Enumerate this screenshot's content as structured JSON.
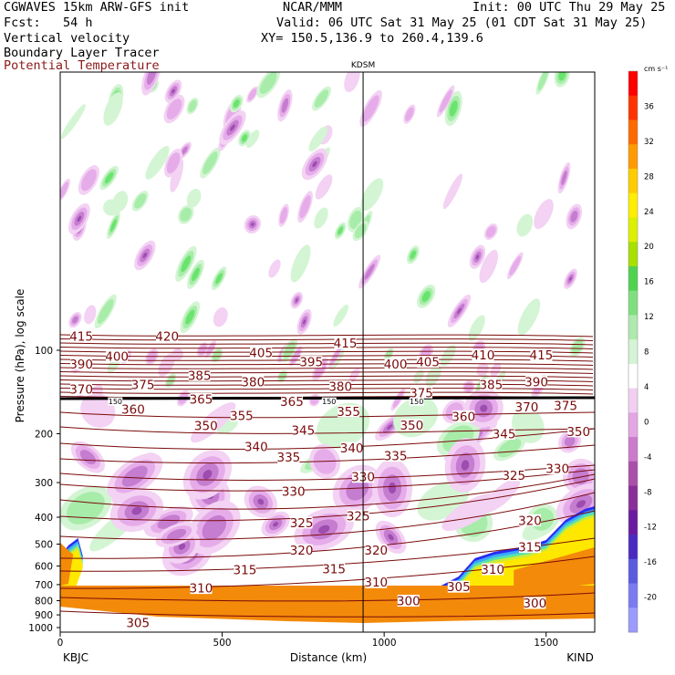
{
  "header": {
    "line1_left": "CGWAVES 15km ARW-GFS init",
    "line1_mid": "NCAR/MMM",
    "line1_right": "Init: 00 UTC Thu 29 May 25",
    "line2_left": "Fcst:   54 h",
    "line2_right": "Valid: 06 UTC Sat 31 May 25 (01 CDT Sat 31 May 25)",
    "line3_left": "Vertical velocity",
    "line3_right": "XY= 150.5,136.9 to 260.4,139.6",
    "line4_left": "Boundary Layer Tracer",
    "line5_left": "Potential Temperature"
  },
  "colors": {
    "theta_contour": "#7a0a0a",
    "terrain": "#f38a0a",
    "axis": "#000000"
  },
  "chart_data": {
    "type": "cross-section",
    "xlabel": "Distance (km)",
    "ylabel": "Pressure (hPa), log scale",
    "xlim": [
      0,
      1650
    ],
    "x_ticks": [
      "0",
      "500",
      "1000",
      "1500"
    ],
    "x_tick_values": [
      0,
      500,
      1000,
      1500
    ],
    "y_ticks": [
      "100",
      "200",
      "300",
      "400",
      "500",
      "600",
      "700",
      "800",
      "900",
      "1000"
    ],
    "y_tick_values": [
      100,
      200,
      300,
      400,
      500,
      600,
      700,
      800,
      900,
      1000
    ],
    "left_endpoint": "KBJC",
    "right_endpoint": "KIND",
    "marker_label": "KDSM",
    "marker_x_km": 935,
    "colorbar": {
      "unit": "cm s⁻¹",
      "labels": [
        "36",
        "32",
        "28",
        "24",
        "20",
        "16",
        "12",
        "8",
        "4",
        "0",
        "-4",
        "-8",
        "-12",
        "-16",
        "-20"
      ],
      "values": [
        36,
        32,
        28,
        24,
        20,
        16,
        12,
        8,
        4,
        0,
        -4,
        -8,
        -12,
        -16,
        -20
      ],
      "colors": [
        "#ff0000",
        "#ff3300",
        "#ff6a00",
        "#ff9a00",
        "#ffcc00",
        "#ffee00",
        "#ddf000",
        "#a8e000",
        "#4fd34f",
        "#7fdf7f",
        "#aee9ae",
        "#d5f3d5",
        "#ffffff",
        "#f2cff2",
        "#e3a6e3",
        "#cc7acc",
        "#aa4faa",
        "#8a2e9a",
        "#6a1aa0",
        "#4a2ac0",
        "#5a5ae0",
        "#7a7af2",
        "#9a9aff"
      ]
    },
    "theta_labels": [
      {
        "t": "415",
        "x": 65,
        "p": 89
      },
      {
        "t": "420",
        "x": 330,
        "p": 89
      },
      {
        "t": "415",
        "x": 880,
        "p": 94
      },
      {
        "t": "400",
        "x": 175,
        "p": 105
      },
      {
        "t": "405",
        "x": 620,
        "p": 102
      },
      {
        "t": "395",
        "x": 775,
        "p": 110
      },
      {
        "t": "400",
        "x": 1035,
        "p": 112
      },
      {
        "t": "405",
        "x": 1135,
        "p": 110
      },
      {
        "t": "410",
        "x": 1305,
        "p": 104
      },
      {
        "t": "415",
        "x": 1485,
        "p": 104
      },
      {
        "t": "390",
        "x": 65,
        "p": 112
      },
      {
        "t": "385",
        "x": 430,
        "p": 123
      },
      {
        "t": "380",
        "x": 595,
        "p": 130
      },
      {
        "t": "380",
        "x": 865,
        "p": 135
      },
      {
        "t": "385",
        "x": 1330,
        "p": 133
      },
      {
        "t": "390",
        "x": 1470,
        "p": 130
      },
      {
        "t": "375",
        "x": 255,
        "p": 133
      },
      {
        "t": "370",
        "x": 65,
        "p": 138
      },
      {
        "t": "375",
        "x": 1115,
        "p": 142
      },
      {
        "t": "365",
        "x": 435,
        "p": 150
      },
      {
        "t": "365",
        "x": 715,
        "p": 153
      },
      {
        "t": "355",
        "x": 890,
        "p": 166
      },
      {
        "t": "360",
        "x": 225,
        "p": 163
      },
      {
        "t": "355",
        "x": 560,
        "p": 172
      },
      {
        "t": "360",
        "x": 1245,
        "p": 173
      },
      {
        "t": "370",
        "x": 1440,
        "p": 160
      },
      {
        "t": "375",
        "x": 1560,
        "p": 158
      },
      {
        "t": "350",
        "x": 450,
        "p": 187
      },
      {
        "t": "345",
        "x": 750,
        "p": 194
      },
      {
        "t": "350",
        "x": 1085,
        "p": 186
      },
      {
        "t": "345",
        "x": 1370,
        "p": 200
      },
      {
        "t": "350",
        "x": 1600,
        "p": 196
      },
      {
        "t": "340",
        "x": 605,
        "p": 222
      },
      {
        "t": "340",
        "x": 900,
        "p": 225
      },
      {
        "t": "335",
        "x": 705,
        "p": 243
      },
      {
        "t": "335",
        "x": 1035,
        "p": 240
      },
      {
        "t": "330",
        "x": 1535,
        "p": 267
      },
      {
        "t": "325",
        "x": 1400,
        "p": 282
      },
      {
        "t": "330",
        "x": 935,
        "p": 286
      },
      {
        "t": "330",
        "x": 720,
        "p": 322
      },
      {
        "t": "325",
        "x": 745,
        "p": 418
      },
      {
        "t": "325",
        "x": 920,
        "p": 395
      },
      {
        "t": "320",
        "x": 1450,
        "p": 410
      },
      {
        "t": "320",
        "x": 745,
        "p": 526
      },
      {
        "t": "320",
        "x": 975,
        "p": 526
      },
      {
        "t": "315",
        "x": 1450,
        "p": 512
      },
      {
        "t": "315",
        "x": 570,
        "p": 618
      },
      {
        "t": "315",
        "x": 845,
        "p": 614
      },
      {
        "t": "310",
        "x": 1335,
        "p": 616
      },
      {
        "t": "310",
        "x": 435,
        "p": 720
      },
      {
        "t": "310",
        "x": 975,
        "p": 686
      },
      {
        "t": "305",
        "x": 1230,
        "p": 712
      },
      {
        "t": "300",
        "x": 1075,
        "p": 800
      },
      {
        "t": "300",
        "x": 1465,
        "p": 815
      },
      {
        "t": "305",
        "x": 240,
        "p": 960
      },
      {
        "t": "150",
        "x": 170,
        "p": 153
      },
      {
        "t": "150",
        "x": 830,
        "p": 153
      },
      {
        "t": "150",
        "x": 1100,
        "p": 153
      }
    ]
  }
}
